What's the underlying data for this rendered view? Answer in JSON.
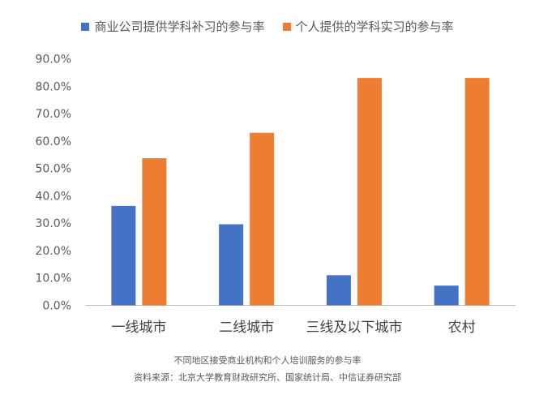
{
  "chart_data": {
    "type": "bar",
    "categories": [
      "一线城市",
      "二线城市",
      "三线及以下城市",
      "农村"
    ],
    "series": [
      {
        "name": "商业公司提供学科补习的参与率",
        "color": "#4472C4",
        "values": [
          36.3,
          29.6,
          11.0,
          7.2
        ]
      },
      {
        "name": "个人提供的学科实习的参与率",
        "color": "#ED7D31",
        "values": [
          53.7,
          63.0,
          83.0,
          83.0
        ]
      }
    ],
    "yticks": [
      "0.0%",
      "10.0%",
      "20.0%",
      "30.0%",
      "40.0%",
      "50.0%",
      "60.0%",
      "70.0%",
      "80.0%",
      "90.0%"
    ],
    "ylim": [
      0,
      90
    ],
    "grid": false,
    "legend_position": "top"
  },
  "caption": "不同地区接受商业机构和个人培训服务的参与率",
  "source": "资料来源：北京大学教育财政研究所、国家统计局、中信证券研究部"
}
